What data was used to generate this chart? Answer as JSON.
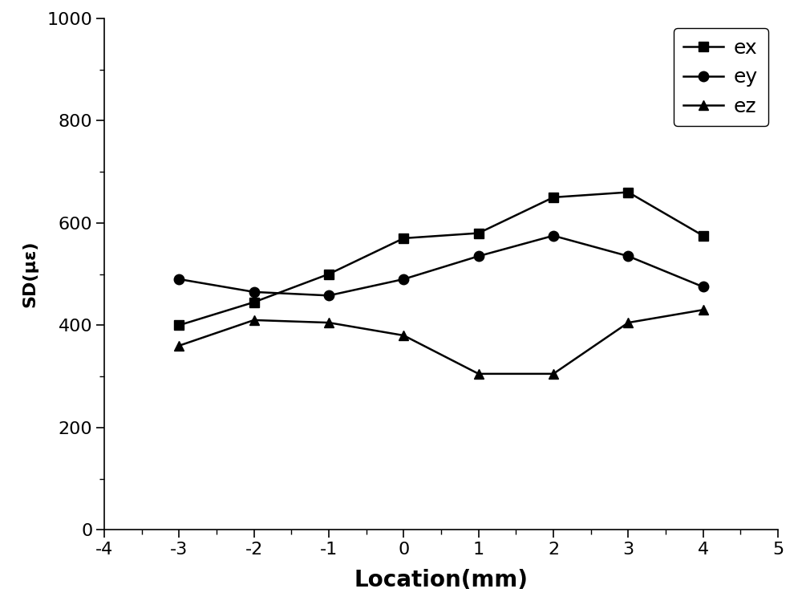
{
  "x": [
    -3,
    -2,
    -1,
    0,
    1,
    2,
    3,
    4
  ],
  "ex": [
    400,
    445,
    500,
    570,
    580,
    650,
    660,
    575
  ],
  "ey": [
    490,
    465,
    458,
    490,
    535,
    575,
    535,
    475
  ],
  "ez": [
    360,
    410,
    405,
    380,
    305,
    305,
    405,
    430
  ],
  "xlabel": "Location(mm)",
  "ylabel": "SD(με)",
  "xlim": [
    -4,
    5
  ],
  "ylim": [
    0,
    1000
  ],
  "yticks": [
    0,
    200,
    400,
    600,
    800,
    1000
  ],
  "xticks": [
    -4,
    -3,
    -2,
    -1,
    0,
    1,
    2,
    3,
    4,
    5
  ],
  "line_color": "#000000",
  "legend_labels": [
    "ex",
    "ey",
    "ez"
  ],
  "markers": [
    "s",
    "o",
    "^"
  ],
  "background_color": "#ffffff",
  "tick_fontsize": 16,
  "xlabel_fontsize": 20,
  "ylabel_fontsize": 16,
  "legend_fontsize": 18
}
